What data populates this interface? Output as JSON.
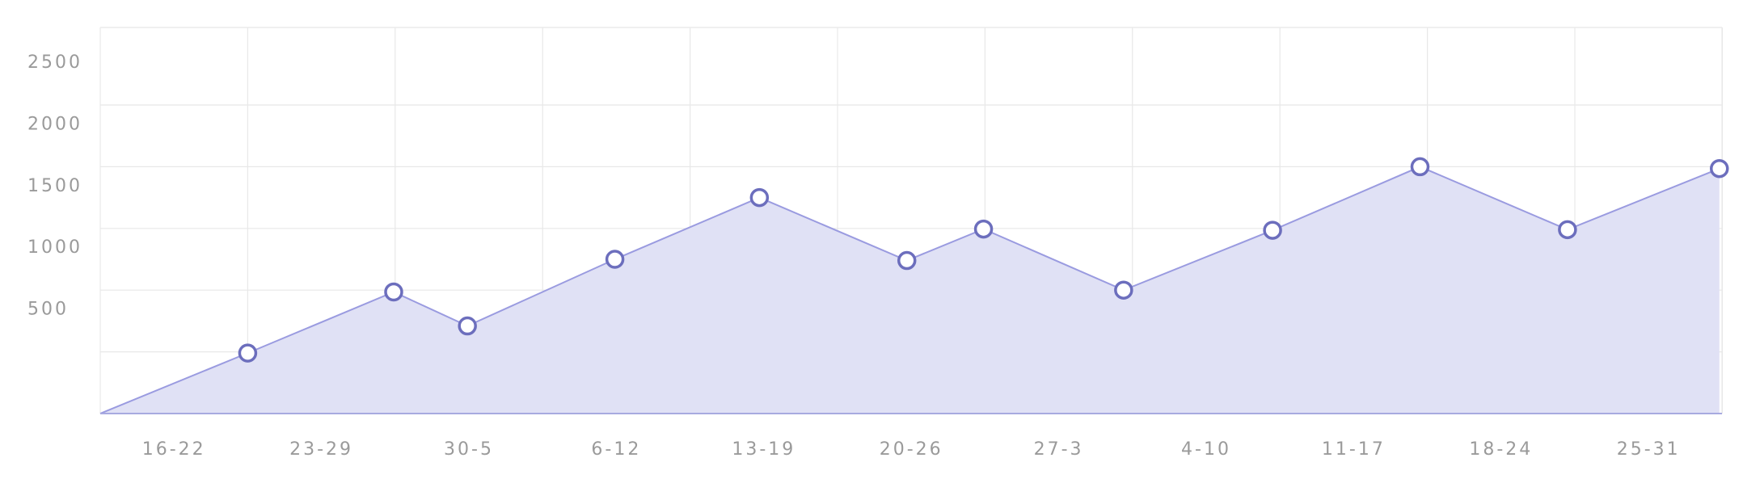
{
  "chart_data": {
    "type": "area",
    "title": "",
    "xlabel": "",
    "ylabel": "",
    "ylim": [
      0,
      2500
    ],
    "y_ticks": [
      500,
      1000,
      1500,
      2000,
      2500
    ],
    "categories": [
      "16-22",
      "23-29",
      "30-5",
      "6-12",
      "13-19",
      "20-26",
      "27-3",
      "4-10",
      "11-17",
      "18-24",
      "25-31"
    ],
    "x": [
      0,
      1,
      1.99,
      2.49,
      3.49,
      4.47,
      5.47,
      5.99,
      6.94,
      7.95,
      8.95,
      9.95,
      10.98
    ],
    "values": [
      0,
      490,
      985,
      710,
      1250,
      1750,
      1240,
      1495,
      1000,
      1485,
      2000,
      1490,
      1985
    ],
    "markers": [
      false,
      true,
      true,
      true,
      true,
      true,
      true,
      true,
      true,
      true,
      true,
      true,
      true
    ],
    "grid": true,
    "legend": "none",
    "colors": {
      "line": "#9a9be0",
      "fill": "#e0e1f5",
      "marker_stroke": "#6c6ebd",
      "marker_fill": "#ffffff",
      "grid": "#e8e8e8",
      "axis": "#a8aae0",
      "tick_text": "#9a9a9a"
    }
  }
}
